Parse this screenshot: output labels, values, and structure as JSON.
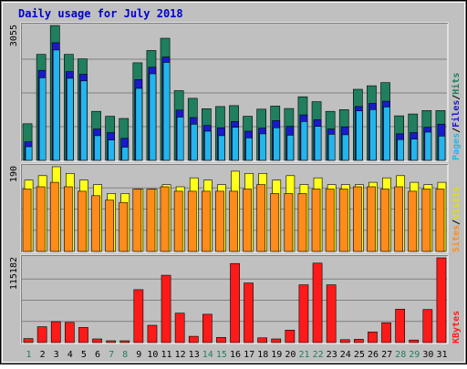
{
  "chart_data": {
    "type": "bar",
    "title": "Daily usage for July 2018",
    "days": [
      "1",
      "2",
      "3",
      "4",
      "5",
      "6",
      "7",
      "8",
      "9",
      "10",
      "11",
      "12",
      "13",
      "14",
      "15",
      "16",
      "17",
      "18",
      "19",
      "20",
      "21",
      "22",
      "23",
      "24",
      "25",
      "26",
      "27",
      "28",
      "29",
      "30",
      "31"
    ],
    "weekend_days": [
      "1",
      "7",
      "8",
      "14",
      "15",
      "21",
      "22",
      "28",
      "29"
    ],
    "panels": [
      {
        "id": "hits",
        "ymax": 3055,
        "ymax_label": "3055",
        "legend": [
          "Pages",
          "/",
          "Files",
          "/",
          "Hits"
        ],
        "series": [
          {
            "name": "Hits",
            "color": "#1f7f5f",
            "values": [
              830,
              2400,
              3055,
              2400,
              2300,
              1110,
              1000,
              950,
              2210,
              2490,
              2765,
              1580,
              1405,
              1170,
              1220,
              1240,
              1000,
              1160,
              1230,
              1175,
              1440,
              1330,
              1110,
              1150,
              1610,
              1690,
              1760,
              1010,
              1050,
              1130,
              1130
            ]
          },
          {
            "name": "Files",
            "color": "#1a1acc",
            "values": [
              420,
              2040,
              2665,
              2010,
              1950,
              710,
              630,
              500,
              1830,
              2110,
              2340,
              1140,
              970,
              790,
              740,
              880,
              660,
              730,
              900,
              770,
              1030,
              920,
              710,
              760,
              1220,
              1290,
              1340,
              600,
              630,
              750,
              820
            ]
          },
          {
            "name": "Pages",
            "color": "#22b5ee",
            "values": [
              310,
              1870,
              2500,
              1860,
              1800,
              560,
              460,
              300,
              1630,
              1960,
              2220,
              980,
              820,
              660,
              560,
              750,
              510,
              600,
              740,
              570,
              880,
              770,
              590,
              580,
              1120,
              1150,
              1210,
              470,
              480,
              640,
              550
            ]
          }
        ]
      },
      {
        "id": "visits",
        "ymax": 190,
        "ymax_label": "190",
        "legend": [
          "Sites",
          "/",
          "Visits"
        ],
        "series": [
          {
            "name": "Visits",
            "color": "#ffff1a",
            "values": [
              160,
              170,
              190,
              175,
              160,
              150,
              130,
              130,
              140,
              140,
              150,
              145,
              165,
              160,
              150,
              180,
              175,
              175,
              160,
              170,
              150,
              165,
              150,
              150,
              150,
              155,
              165,
              170,
              155,
              150,
              155
            ]
          },
          {
            "name": "Sites",
            "color": "#ff8c1a",
            "values": [
              140,
              145,
              155,
              145,
              135,
              125,
              115,
              110,
              140,
              140,
              145,
              135,
              135,
              135,
              135,
              135,
              140,
              150,
              130,
              130,
              130,
              140,
              140,
              140,
              145,
              145,
              140,
              145,
              135,
              140,
              140
            ]
          }
        ]
      },
      {
        "id": "kbytes",
        "ymax": 115182,
        "ymax_label": "115182",
        "legend": [
          "KBytes"
        ],
        "series": [
          {
            "name": "KBytes",
            "color": "#ff1a1a",
            "values": [
              5500,
              21500,
              28500,
              27500,
              20500,
              5000,
              2500,
              2500,
              72000,
              23500,
              91500,
              40000,
              8500,
              38500,
              7000,
              107500,
              81000,
              6500,
              5000,
              17000,
              78500,
              108000,
              78500,
              4000,
              4500,
              14500,
              27000,
              45500,
              3500,
              45000,
              115182
            ]
          }
        ]
      }
    ]
  }
}
